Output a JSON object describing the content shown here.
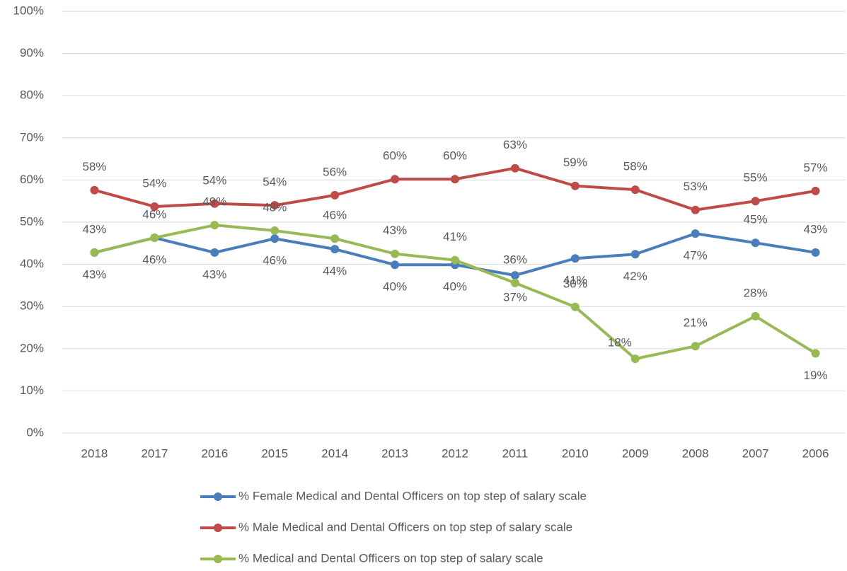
{
  "chart_data": {
    "type": "line",
    "categories": [
      "2018",
      "2017",
      "2016",
      "2015",
      "2014",
      "2013",
      "2012",
      "2011",
      "2010",
      "2009",
      "2008",
      "2007",
      "2006"
    ],
    "ylim": [
      0,
      100
    ],
    "yticks": [
      {
        "value": 0,
        "label": "0%"
      },
      {
        "value": 10,
        "label": "10%"
      },
      {
        "value": 20,
        "label": "20%"
      },
      {
        "value": 30,
        "label": "30%"
      },
      {
        "value": 40,
        "label": "40%"
      },
      {
        "value": 50,
        "label": "50%"
      },
      {
        "value": 60,
        "label": "60%"
      },
      {
        "value": 70,
        "label": "70%"
      },
      {
        "value": 80,
        "label": "80%"
      },
      {
        "value": 90,
        "label": "90%"
      },
      {
        "value": 100,
        "label": "100%"
      }
    ],
    "grid": true,
    "legend": "bottom",
    "series": [
      {
        "name": "% Female Medical and Dental Officers on top step of salary scale",
        "color": "#4a7ebb",
        "values": [
          42.8,
          46.3,
          42.8,
          46.1,
          43.6,
          39.9,
          39.9,
          37.4,
          41.4,
          42.4,
          47.3,
          45.1,
          42.8
        ],
        "value_labels": [
          "43%",
          "46%",
          "43%",
          "46%",
          "44%",
          "40%",
          "40%",
          "37%",
          "41%",
          "42%",
          "47%",
          "45%",
          "43%"
        ]
      },
      {
        "name": "% Male Medical and Dental Officers on top step of salary scale",
        "color": "#be4b48",
        "values": [
          57.6,
          53.7,
          54.4,
          54.0,
          56.4,
          60.2,
          60.2,
          62.8,
          58.6,
          57.7,
          52.9,
          55.0,
          57.4
        ],
        "value_labels": [
          "58%",
          "54%",
          "54%",
          "54%",
          "56%",
          "60%",
          "60%",
          "63%",
          "59%",
          "58%",
          "53%",
          "55%",
          "57%"
        ]
      },
      {
        "name": "% Medical and Dental Officers on top step of salary scale",
        "color": "#98b954",
        "values": [
          42.8,
          46.3,
          49.3,
          48.0,
          46.1,
          42.5,
          41.0,
          35.6,
          29.9,
          17.6,
          20.6,
          27.7,
          18.9
        ],
        "value_labels": [
          "43%",
          "46%",
          "49%",
          "48%",
          "46%",
          "43%",
          "41%",
          "36%",
          "30%",
          "18%",
          "21%",
          "28%",
          "19%"
        ]
      }
    ]
  }
}
